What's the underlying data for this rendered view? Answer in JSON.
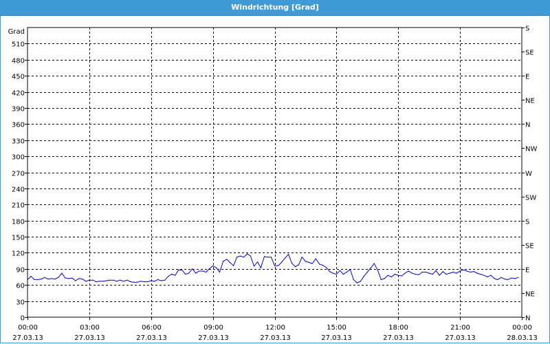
{
  "window": {
    "title": "Windrichtung [Grad]"
  },
  "chart_data": {
    "type": "line",
    "title": "Windrichtung [Grad]",
    "ylabel": "Grad",
    "ylim": [
      0,
      540
    ],
    "y_ticks": [
      0,
      30,
      60,
      90,
      120,
      150,
      180,
      210,
      240,
      270,
      300,
      330,
      360,
      390,
      420,
      450,
      480,
      510
    ],
    "x_range": [
      "2013-03-27T00:00",
      "2013-03-28T00:00"
    ],
    "x_ticks": [
      {
        "time": "00:00",
        "date": "27.03.13",
        "hours": 0
      },
      {
        "time": "03:00",
        "date": "27.03.13",
        "hours": 3
      },
      {
        "time": "06:00",
        "date": "27.03.13",
        "hours": 6
      },
      {
        "time": "09:00",
        "date": "27.03.13",
        "hours": 9
      },
      {
        "time": "12:00",
        "date": "27.03.13",
        "hours": 12
      },
      {
        "time": "15:00",
        "date": "27.03.13",
        "hours": 15
      },
      {
        "time": "18:00",
        "date": "27.03.13",
        "hours": 18
      },
      {
        "time": "21:00",
        "date": "27.03.13",
        "hours": 21
      },
      {
        "time": "00:00",
        "date": "28.03.13",
        "hours": 24
      }
    ],
    "right_axis": [
      {
        "label": "N",
        "value": 0
      },
      {
        "label": "NE",
        "value": 45
      },
      {
        "label": "E",
        "value": 90
      },
      {
        "label": "SE",
        "value": 135
      },
      {
        "label": "S",
        "value": 180
      },
      {
        "label": "SW",
        "value": 225
      },
      {
        "label": "W",
        "value": 270
      },
      {
        "label": "NW",
        "value": 315
      },
      {
        "label": "N",
        "value": 360
      },
      {
        "label": "NE",
        "value": 405
      },
      {
        "label": "E",
        "value": 450
      },
      {
        "label": "SE",
        "value": 495
      },
      {
        "label": "S",
        "value": 540
      }
    ],
    "grid": true,
    "line_color": "#0000cc",
    "series": [
      {
        "x": [
          0,
          0.17,
          0.33,
          0.5,
          0.67,
          0.83,
          1,
          1.17,
          1.33,
          1.5,
          1.67,
          1.83,
          2,
          2.17,
          2.33,
          2.5,
          2.67,
          2.83,
          3,
          3.17,
          3.33,
          3.5,
          3.67,
          3.83,
          4,
          4.17,
          4.33,
          4.5,
          4.67,
          4.83,
          5,
          5.17,
          5.33,
          5.5,
          5.67,
          5.83,
          6,
          6.17,
          6.33,
          6.5,
          6.67,
          6.83,
          7,
          7.17,
          7.33,
          7.5,
          7.67,
          7.83,
          8,
          8.17,
          8.33,
          8.5,
          8.67,
          8.83,
          9,
          9.17,
          9.33,
          9.5,
          9.67,
          9.83,
          10,
          10.17,
          10.33,
          10.5,
          10.67,
          10.83,
          11,
          11.17,
          11.33,
          11.5,
          11.67,
          11.83,
          12,
          12.17,
          12.33,
          12.5,
          12.67,
          12.83,
          13,
          13.17,
          13.33,
          13.5,
          13.67,
          13.83,
          14,
          14.17,
          14.33,
          14.5,
          14.67,
          14.83,
          15,
          15.17,
          15.33,
          15.5,
          15.67,
          15.83,
          16,
          16.17,
          16.33,
          16.5,
          16.67,
          16.83,
          17,
          17.17,
          17.33,
          17.5,
          17.67,
          17.83,
          18,
          18.17,
          18.33,
          18.5,
          18.67,
          18.83,
          19,
          19.17,
          19.33,
          19.5,
          19.67,
          19.83,
          20,
          20.17,
          20.33,
          20.5,
          20.67,
          20.83,
          21,
          21.17,
          21.33,
          21.5,
          21.67,
          21.83,
          22,
          22.17,
          22.33,
          22.5,
          22.67,
          22.83,
          23,
          23.17,
          23.33,
          23.5,
          23.67,
          23.83
        ],
        "values": [
          70,
          76,
          70,
          70,
          71,
          74,
          71,
          72,
          71,
          74,
          82,
          73,
          72,
          73,
          68,
          72,
          71,
          67,
          69,
          69,
          66,
          67,
          67,
          68,
          69,
          69,
          67,
          69,
          67,
          69,
          66,
          65,
          65,
          67,
          66,
          66,
          68,
          67,
          70,
          68,
          69,
          76,
          80,
          78,
          88,
          88,
          80,
          82,
          90,
          82,
          86,
          86,
          84,
          90,
          96,
          92,
          84,
          104,
          108,
          102,
          96,
          112,
          114,
          112,
          118,
          114,
          95,
          103,
          92,
          113,
          112,
          112,
          96,
          96,
          102,
          110,
          117,
          101,
          94,
          98,
          112,
          104,
          102,
          100,
          109,
          99,
          97,
          93,
          85,
          82,
          80,
          87,
          80,
          84,
          89,
          70,
          64,
          67,
          76,
          84,
          92,
          100,
          88,
          70,
          72,
          78,
          75,
          80,
          78,
          77,
          82,
          86,
          82,
          80,
          79,
          84,
          84,
          82,
          80,
          87,
          78,
          85,
          80,
          82,
          84,
          82,
          86,
          88,
          86,
          84,
          85,
          82,
          80,
          78,
          75,
          78,
          72,
          70,
          74,
          71,
          70,
          73,
          72,
          74
        ]
      }
    ]
  }
}
